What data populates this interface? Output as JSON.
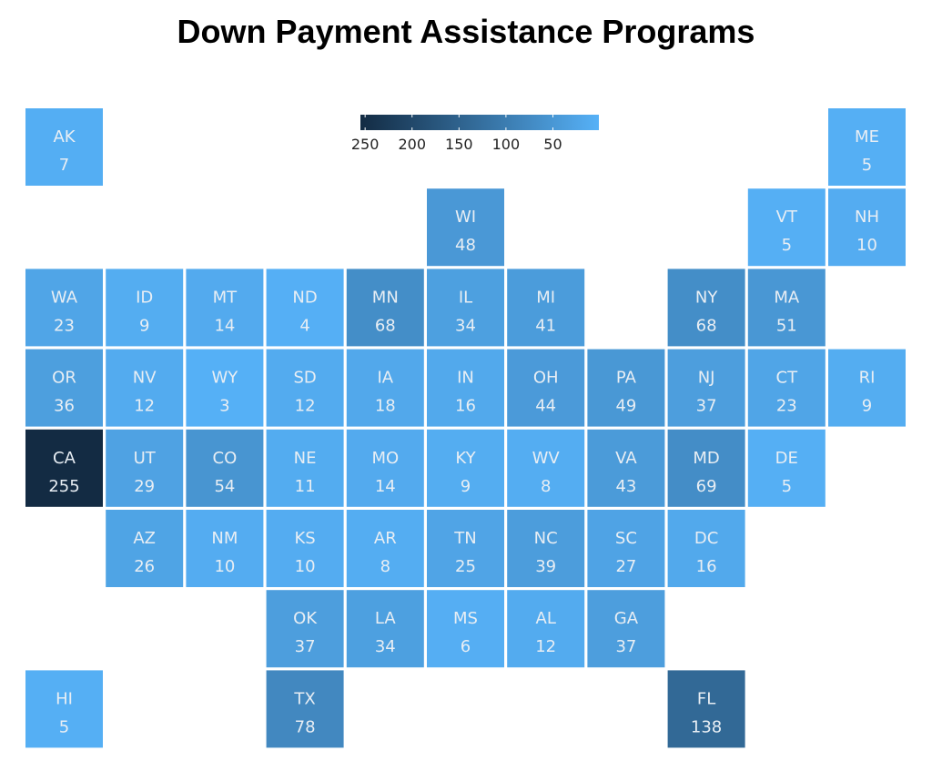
{
  "chart_data": {
    "type": "heatmap",
    "title": "Down Payment Assistance Programs",
    "color_scale": {
      "low_color": "#56b1f7",
      "high_color": "#132b43",
      "domain": [
        1,
        255
      ]
    },
    "legend": {
      "position": "top-center",
      "ticks": [
        250,
        200,
        150,
        100,
        50
      ]
    },
    "tiles": [
      {
        "state": "AK",
        "value": 7,
        "row": 0,
        "col": 0
      },
      {
        "state": "ME",
        "value": 5,
        "row": 0,
        "col": 10
      },
      {
        "state": "WI",
        "value": 48,
        "row": 1,
        "col": 5
      },
      {
        "state": "VT",
        "value": 5,
        "row": 1,
        "col": 9
      },
      {
        "state": "NH",
        "value": 10,
        "row": 1,
        "col": 10
      },
      {
        "state": "WA",
        "value": 23,
        "row": 2,
        "col": 0
      },
      {
        "state": "ID",
        "value": 9,
        "row": 2,
        "col": 1
      },
      {
        "state": "MT",
        "value": 14,
        "row": 2,
        "col": 2
      },
      {
        "state": "ND",
        "value": 4,
        "row": 2,
        "col": 3
      },
      {
        "state": "MN",
        "value": 68,
        "row": 2,
        "col": 4
      },
      {
        "state": "IL",
        "value": 34,
        "row": 2,
        "col": 5
      },
      {
        "state": "MI",
        "value": 41,
        "row": 2,
        "col": 6
      },
      {
        "state": "NY",
        "value": 68,
        "row": 2,
        "col": 8
      },
      {
        "state": "MA",
        "value": 51,
        "row": 2,
        "col": 9
      },
      {
        "state": "OR",
        "value": 36,
        "row": 3,
        "col": 0
      },
      {
        "state": "NV",
        "value": 12,
        "row": 3,
        "col": 1
      },
      {
        "state": "WY",
        "value": 3,
        "row": 3,
        "col": 2
      },
      {
        "state": "SD",
        "value": 12,
        "row": 3,
        "col": 3
      },
      {
        "state": "IA",
        "value": 18,
        "row": 3,
        "col": 4
      },
      {
        "state": "IN",
        "value": 16,
        "row": 3,
        "col": 5
      },
      {
        "state": "OH",
        "value": 44,
        "row": 3,
        "col": 6
      },
      {
        "state": "PA",
        "value": 49,
        "row": 3,
        "col": 7
      },
      {
        "state": "NJ",
        "value": 37,
        "row": 3,
        "col": 8
      },
      {
        "state": "CT",
        "value": 23,
        "row": 3,
        "col": 9
      },
      {
        "state": "RI",
        "value": 9,
        "row": 3,
        "col": 10
      },
      {
        "state": "CA",
        "value": 255,
        "row": 4,
        "col": 0
      },
      {
        "state": "UT",
        "value": 29,
        "row": 4,
        "col": 1
      },
      {
        "state": "CO",
        "value": 54,
        "row": 4,
        "col": 2
      },
      {
        "state": "NE",
        "value": 11,
        "row": 4,
        "col": 3
      },
      {
        "state": "MO",
        "value": 14,
        "row": 4,
        "col": 4
      },
      {
        "state": "KY",
        "value": 9,
        "row": 4,
        "col": 5
      },
      {
        "state": "WV",
        "value": 8,
        "row": 4,
        "col": 6
      },
      {
        "state": "VA",
        "value": 43,
        "row": 4,
        "col": 7
      },
      {
        "state": "MD",
        "value": 69,
        "row": 4,
        "col": 8
      },
      {
        "state": "DE",
        "value": 5,
        "row": 4,
        "col": 9
      },
      {
        "state": "AZ",
        "value": 26,
        "row": 5,
        "col": 1
      },
      {
        "state": "NM",
        "value": 10,
        "row": 5,
        "col": 2
      },
      {
        "state": "KS",
        "value": 10,
        "row": 5,
        "col": 3
      },
      {
        "state": "AR",
        "value": 8,
        "row": 5,
        "col": 4
      },
      {
        "state": "TN",
        "value": 25,
        "row": 5,
        "col": 5
      },
      {
        "state": "NC",
        "value": 39,
        "row": 5,
        "col": 6
      },
      {
        "state": "SC",
        "value": 27,
        "row": 5,
        "col": 7
      },
      {
        "state": "DC",
        "value": 16,
        "row": 5,
        "col": 8
      },
      {
        "state": "OK",
        "value": 37,
        "row": 6,
        "col": 3
      },
      {
        "state": "LA",
        "value": 34,
        "row": 6,
        "col": 4
      },
      {
        "state": "MS",
        "value": 6,
        "row": 6,
        "col": 5
      },
      {
        "state": "AL",
        "value": 12,
        "row": 6,
        "col": 6
      },
      {
        "state": "GA",
        "value": 37,
        "row": 6,
        "col": 7
      },
      {
        "state": "HI",
        "value": 5,
        "row": 7,
        "col": 0
      },
      {
        "state": "TX",
        "value": 78,
        "row": 7,
        "col": 3
      },
      {
        "state": "FL",
        "value": 138,
        "row": 7,
        "col": 8
      }
    ]
  }
}
